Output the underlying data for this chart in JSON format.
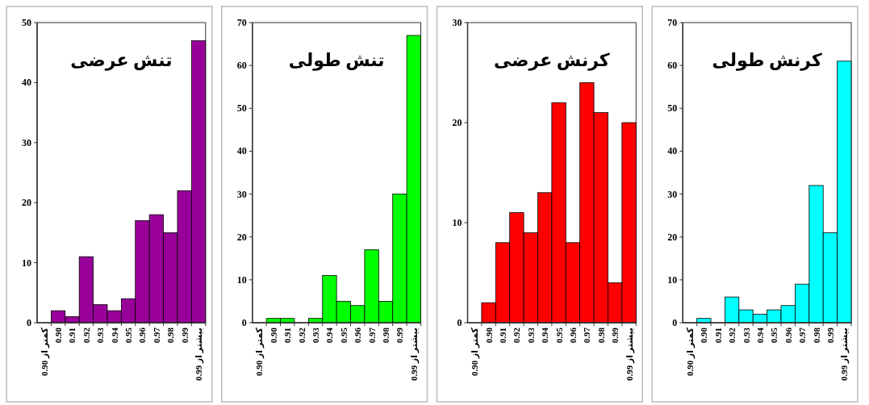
{
  "chart_data": [
    {
      "type": "bar",
      "title": "تنش عرضی",
      "categories": [
        "کمتر از 0.90",
        "0.90",
        "0.91",
        "0.92",
        "0.93",
        "0.94",
        "0.95",
        "0.96",
        "0.97",
        "0.98",
        "0.99",
        "بیشتر از 0.99"
      ],
      "values": [
        0,
        2,
        1,
        11,
        3,
        2,
        4,
        17,
        18,
        15,
        22,
        47
      ],
      "color": "#990099",
      "ylim": [
        0,
        50
      ],
      "yticks": [
        0,
        10,
        20,
        30,
        40,
        50
      ]
    },
    {
      "type": "bar",
      "title": "تنش طولی",
      "categories": [
        "کمتر از 0.90",
        "0.90",
        "0.91",
        "0.92",
        "0.93",
        "0.94",
        "0.95",
        "0.96",
        "0.97",
        "0.98",
        "0.99",
        "بیشتر از 0.99"
      ],
      "values": [
        0,
        1,
        1,
        0,
        1,
        11,
        5,
        4,
        17,
        5,
        30,
        67
      ],
      "color": "#00ff00",
      "ylim": [
        0,
        70
      ],
      "yticks": [
        0,
        10,
        20,
        30,
        40,
        50,
        60,
        70
      ]
    },
    {
      "type": "bar",
      "title": "کرنش عرضی",
      "categories": [
        "کمتر از 0.90",
        "0.90",
        "0.91",
        "0.92",
        "0.93",
        "0.94",
        "0.95",
        "0.96",
        "0.97",
        "0.98",
        "0.99",
        "بیشتر از 0.99"
      ],
      "values": [
        0,
        2,
        8,
        11,
        9,
        13,
        22,
        8,
        24,
        21,
        4,
        20
      ],
      "color": "#ff0000",
      "ylim": [
        0,
        30
      ],
      "yticks": [
        0,
        10,
        20,
        30
      ]
    },
    {
      "type": "bar",
      "title": "کرنش طولی",
      "categories": [
        "کمتر از 0.90",
        "0.90",
        "0.91",
        "0.92",
        "0.93",
        "0.94",
        "0.95",
        "0.96",
        "0.97",
        "0.98",
        "0.99",
        "بیشتر از 0.99"
      ],
      "values": [
        0,
        1,
        0,
        6,
        3,
        2,
        3,
        4,
        9,
        32,
        21,
        61
      ],
      "color": "#00ffff",
      "ylim": [
        0,
        70
      ],
      "yticks": [
        0,
        10,
        20,
        30,
        40,
        50,
        60,
        70
      ]
    }
  ]
}
